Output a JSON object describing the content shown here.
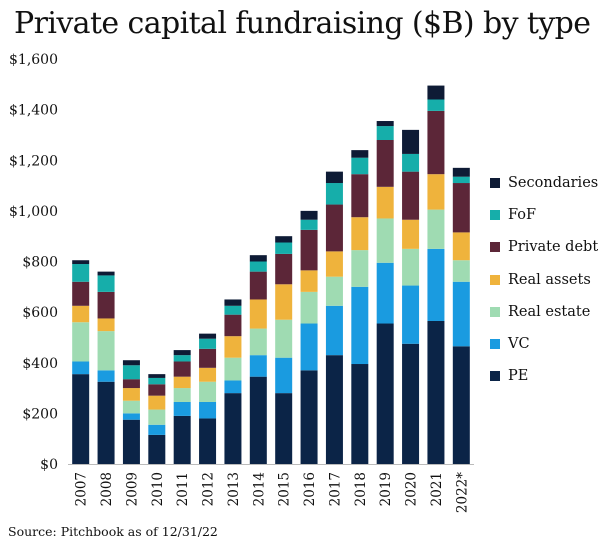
{
  "title": "Private capital fundraising ($B) by type",
  "source": "Source: Pitchbook as of 12/31/22",
  "colors": {
    "PE": "#0b2447",
    "VC": "#1a9be0",
    "Real estate": "#9fdbb2",
    "Real assets": "#efb33c",
    "Private debt": "#5c2638",
    "FoF": "#16aeaa",
    "Secondaries": "#0e1b35"
  },
  "chart_data": {
    "type": "bar",
    "stacked": true,
    "categories": [
      "2007",
      "2008",
      "2009",
      "2010",
      "2011",
      "2012",
      "2013",
      "2014",
      "2015",
      "2016",
      "2017",
      "2018",
      "2019",
      "2020",
      "2021",
      "2022*"
    ],
    "ylim": [
      0,
      1600
    ],
    "yticks": [
      "$0",
      "$200",
      "$400",
      "$600",
      "$800",
      "$1,000",
      "$1,200",
      "$1,400",
      "$1,600"
    ],
    "ytick_values": [
      0,
      200,
      400,
      600,
      800,
      1000,
      1200,
      1400,
      1600
    ],
    "grid": false,
    "legend_position": "right",
    "series": [
      {
        "name": "PE",
        "values": [
          355,
          325,
          175,
          115,
          190,
          180,
          280,
          345,
          280,
          370,
          430,
          395,
          555,
          475,
          565,
          465
        ]
      },
      {
        "name": "VC",
        "values": [
          50,
          45,
          25,
          40,
          55,
          65,
          50,
          85,
          140,
          185,
          195,
          305,
          240,
          230,
          285,
          255
        ]
      },
      {
        "name": "Real estate",
        "values": [
          155,
          155,
          50,
          60,
          55,
          80,
          90,
          105,
          150,
          125,
          115,
          145,
          175,
          145,
          155,
          85
        ]
      },
      {
        "name": "Real assets",
        "values": [
          65,
          50,
          50,
          55,
          45,
          55,
          85,
          115,
          140,
          85,
          100,
          130,
          125,
          115,
          140,
          110
        ]
      },
      {
        "name": "Private debt",
        "values": [
          95,
          105,
          35,
          45,
          60,
          75,
          85,
          110,
          120,
          160,
          185,
          170,
          185,
          190,
          250,
          195
        ]
      },
      {
        "name": "FoF",
        "values": [
          70,
          65,
          55,
          25,
          25,
          40,
          35,
          40,
          45,
          40,
          85,
          65,
          55,
          70,
          45,
          25
        ]
      },
      {
        "name": "Secondaries",
        "values": [
          15,
          15,
          20,
          15,
          20,
          20,
          25,
          25,
          25,
          35,
          45,
          30,
          20,
          95,
          55,
          35
        ]
      }
    ]
  }
}
